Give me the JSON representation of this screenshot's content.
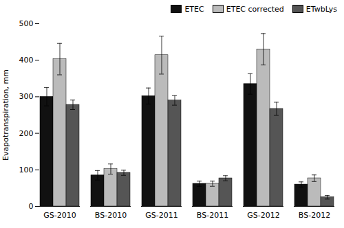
{
  "chart_data": {
    "type": "bar",
    "categories": [
      "GS-2010",
      "BS-2010",
      "GS-2011",
      "BS-2011",
      "GS-2012",
      "BS-2012"
    ],
    "series": [
      {
        "name": "ETEC",
        "color": "#111111",
        "values": [
          300,
          85,
          302,
          62,
          335,
          60
        ],
        "errors": [
          25,
          13,
          22,
          7,
          28,
          7
        ]
      },
      {
        "name": "ETEC corrected",
        "color": "#bbbbbb",
        "values": [
          403,
          102,
          414,
          62,
          430,
          77
        ],
        "errors": [
          43,
          14,
          52,
          7,
          43,
          9
        ]
      },
      {
        "name": "ETwbLys",
        "color": "#555555",
        "values": [
          278,
          92,
          290,
          77,
          267,
          25
        ],
        "errors": [
          13,
          7,
          13,
          7,
          18,
          5
        ]
      }
    ],
    "ylabel": "Evapotranspiration, mm",
    "ylim": [
      0,
      500
    ],
    "yticks": [
      0,
      100,
      200,
      300,
      400,
      500
    ],
    "grid": false,
    "legend": "upper right"
  }
}
